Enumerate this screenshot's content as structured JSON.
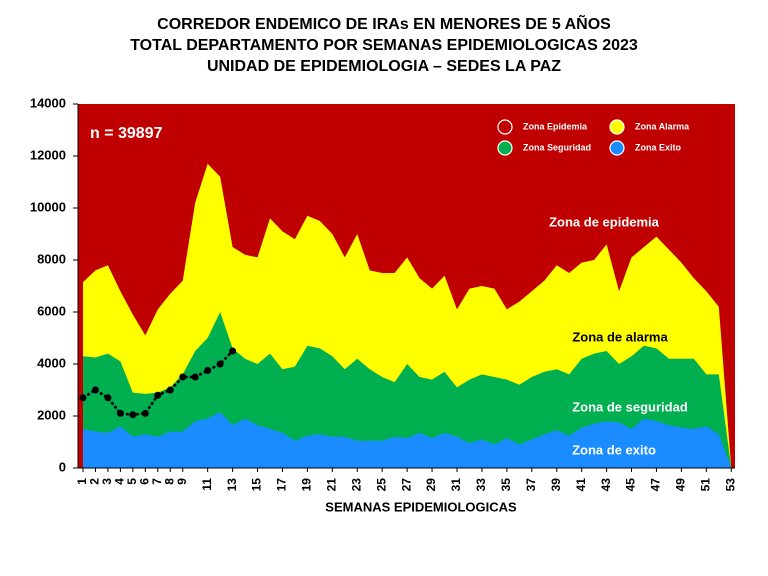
{
  "chart_data": {
    "type": "area",
    "title": [
      "CORREDOR ENDEMICO DE IRAs EN MENORES DE 5 AÑOS",
      "TOTAL DEPARTAMENTO POR SEMANAS EPIDEMIOLOGICAS 2023",
      "UNIDAD DE EPIDEMIOLOGIA – SEDES LA PAZ"
    ],
    "x_label": "SEMANAS EPIDEMIOLOGICAS",
    "annotations": [
      "n =  39897",
      "Zona de epidemia",
      "Zona de alarma",
      "Zona de  seguridad",
      "Zona de exito"
    ],
    "x": [
      1,
      2,
      3,
      4,
      5,
      6,
      7,
      8,
      9,
      10,
      11,
      12,
      13,
      14,
      15,
      16,
      17,
      18,
      19,
      20,
      21,
      22,
      23,
      24,
      25,
      26,
      27,
      28,
      29,
      30,
      31,
      32,
      33,
      34,
      35,
      36,
      37,
      38,
      39,
      40,
      41,
      42,
      43,
      44,
      45,
      46,
      47,
      48,
      49,
      50,
      51,
      52,
      53
    ],
    "xlim": [
      0.6,
      53.3
    ],
    "xticks": [
      1,
      2,
      3,
      4,
      5,
      6,
      7,
      8,
      9,
      11,
      13,
      15,
      17,
      19,
      21,
      23,
      25,
      27,
      29,
      31,
      33,
      35,
      37,
      39,
      41,
      43,
      45,
      47,
      49,
      51,
      53
    ],
    "ylim": [
      0,
      14000
    ],
    "yticks": [
      0,
      2000,
      4000,
      6000,
      8000,
      10000,
      12000,
      14000
    ],
    "legend_position": "top-right",
    "series": [
      {
        "name": "Zona Epidemia",
        "color": "#c00000"
      },
      {
        "name": "Zona Alarma",
        "color": "#ffff00",
        "values": [
          7150,
          7600,
          7800,
          6800,
          5900,
          5100,
          6100,
          6700,
          7200,
          10200,
          11700,
          11200,
          8500,
          8200,
          8100,
          9600,
          9100,
          8800,
          9700,
          9500,
          9000,
          8100,
          9000,
          7600,
          7500,
          7500,
          8100,
          7300,
          6900,
          7400,
          6100,
          6900,
          7000,
          6900,
          6100,
          6400,
          6800,
          7200,
          7800,
          7500,
          7900,
          8000,
          8600,
          6800,
          8100,
          8500,
          8900,
          8400,
          7900,
          7300,
          6800,
          6200,
          0
        ]
      },
      {
        "name": "Zona Seguridad",
        "color": "#00b050",
        "values": [
          4300,
          4250,
          4400,
          4100,
          2900,
          2850,
          2900,
          3100,
          3600,
          4500,
          5000,
          6000,
          4600,
          4200,
          4000,
          4400,
          3800,
          3900,
          4700,
          4600,
          4300,
          3800,
          4200,
          3800,
          3500,
          3300,
          4000,
          3500,
          3400,
          3700,
          3100,
          3400,
          3600,
          3500,
          3400,
          3200,
          3500,
          3700,
          3800,
          3600,
          4200,
          4400,
          4500,
          4000,
          4300,
          4700,
          4600,
          4200,
          4200,
          4200,
          3600,
          3600,
          0
        ]
      },
      {
        "name": "Zona Exito",
        "color": "#1a8cff",
        "values": [
          1500,
          1400,
          1350,
          1600,
          1200,
          1300,
          1200,
          1400,
          1400,
          1800,
          1900,
          2150,
          1650,
          1900,
          1650,
          1500,
          1350,
          1050,
          1250,
          1300,
          1200,
          1200,
          1050,
          1050,
          1050,
          1200,
          1150,
          1350,
          1150,
          1350,
          1200,
          950,
          1100,
          900,
          1150,
          900,
          1100,
          1300,
          1450,
          1250,
          1550,
          1700,
          1800,
          1750,
          1500,
          1900,
          1800,
          1650,
          1550,
          1500,
          1600,
          1300,
          0
        ]
      }
    ],
    "observed": {
      "color": "#000000",
      "values": [
        2700,
        3000,
        2700,
        2100,
        2050,
        2100,
        2800,
        3000,
        3500,
        3500,
        3750,
        4000,
        4500
      ]
    }
  }
}
